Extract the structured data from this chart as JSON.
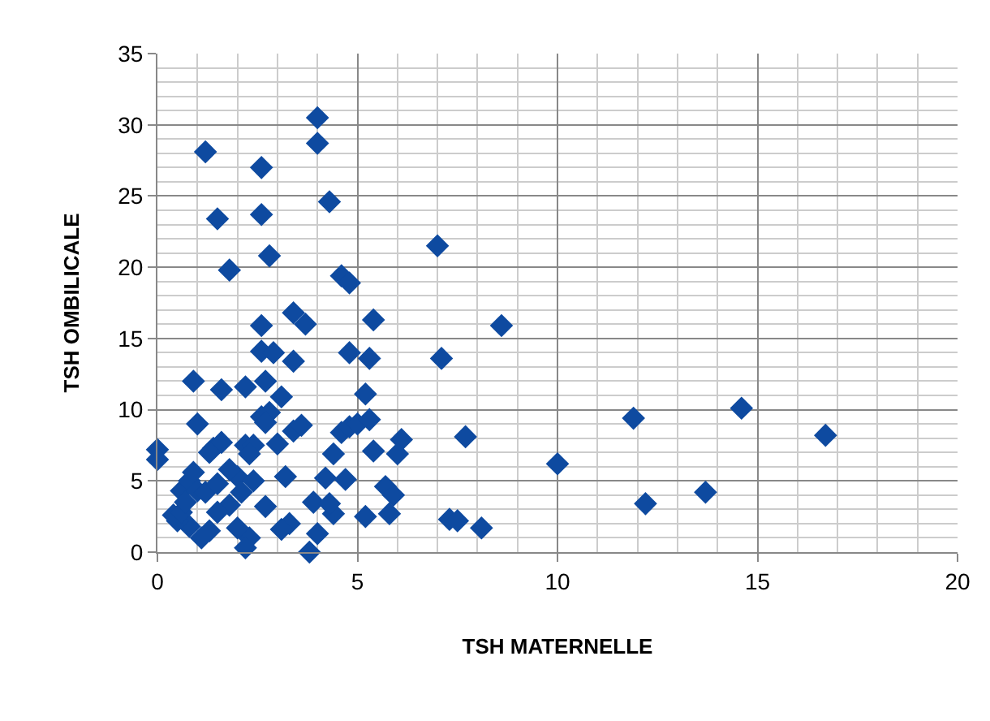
{
  "chart_data": {
    "type": "scatter",
    "xlabel": "TSH MATERNELLE",
    "ylabel": "TSH OMBILICALE",
    "xlim": [
      0,
      20
    ],
    "xticks": [
      0,
      5,
      10,
      15,
      20
    ],
    "ylim": [
      0,
      35
    ],
    "yticks": [
      0,
      5,
      10,
      15,
      20,
      25,
      30,
      35
    ],
    "grid": true,
    "marker": "diamond",
    "series": [
      {
        "color": "#0e4aa0",
        "x": [
          1.2,
          1.5,
          1.8,
          2.6,
          2.6,
          2.8,
          4.0,
          4.0,
          4.3,
          4.6,
          4.8,
          7.0,
          8.6,
          2.6,
          2.6,
          3.4,
          3.7,
          5.4,
          2.9,
          3.4,
          4.8,
          5.3,
          7.1,
          0.9,
          1.6,
          2.2,
          2.7,
          3.1,
          5.2,
          11.9,
          14.6,
          16.7,
          10.0,
          13.7,
          12.2,
          7.3,
          7.5,
          8.1,
          7.7,
          0,
          0,
          1.0,
          1.4,
          1.6,
          2.2,
          2.4,
          2.0,
          2.4,
          2.6,
          2.8,
          2.7,
          3.0,
          3.2,
          3.4,
          3.6,
          4.2,
          4.4,
          4.6,
          4.8,
          5.0,
          5.3,
          5.4,
          5.7,
          5.9,
          6.1,
          6.0,
          5.2,
          4.4,
          4.7,
          3.9,
          4.0,
          3.8,
          3.3,
          3.1,
          2.7,
          2.3,
          2.2,
          2.0,
          1.8,
          1.5,
          1.3,
          1.1,
          0.8,
          0.5,
          0.4,
          0.6,
          0.6,
          0.8,
          0.9,
          0.7,
          1.0,
          1.2,
          1.5,
          1.8,
          2.1,
          2.3,
          1.3,
          5.8,
          4.3
        ],
        "values": [
          28.1,
          23.4,
          19.8,
          27.0,
          23.7,
          20.8,
          30.5,
          28.7,
          24.6,
          19.4,
          18.9,
          21.5,
          15.9,
          15.9,
          14.1,
          16.8,
          16.0,
          16.3,
          14.0,
          13.4,
          14.0,
          13.6,
          13.6,
          12.0,
          11.4,
          11.6,
          12.0,
          10.9,
          11.1,
          9.4,
          10.1,
          8.2,
          6.2,
          4.2,
          3.4,
          2.3,
          2.2,
          1.7,
          8.1,
          7.2,
          6.5,
          9.0,
          7.3,
          7.7,
          7.5,
          7.5,
          5.3,
          5.0,
          9.5,
          9.8,
          9.1,
          7.6,
          5.3,
          8.5,
          8.9,
          5.2,
          6.9,
          8.4,
          8.8,
          9.0,
          9.3,
          7.1,
          4.6,
          4.0,
          7.9,
          6.9,
          2.5,
          2.7,
          5.1,
          3.5,
          1.3,
          0,
          2.0,
          1.6,
          3.2,
          1.0,
          0.3,
          1.7,
          3.3,
          2.8,
          1.5,
          1.0,
          1.8,
          2.2,
          2.6,
          2.8,
          4.3,
          5.0,
          5.6,
          3.5,
          4.3,
          4.2,
          4.8,
          5.8,
          4.2,
          6.9,
          7.0,
          2.7,
          3.4
        ]
      }
    ]
  }
}
